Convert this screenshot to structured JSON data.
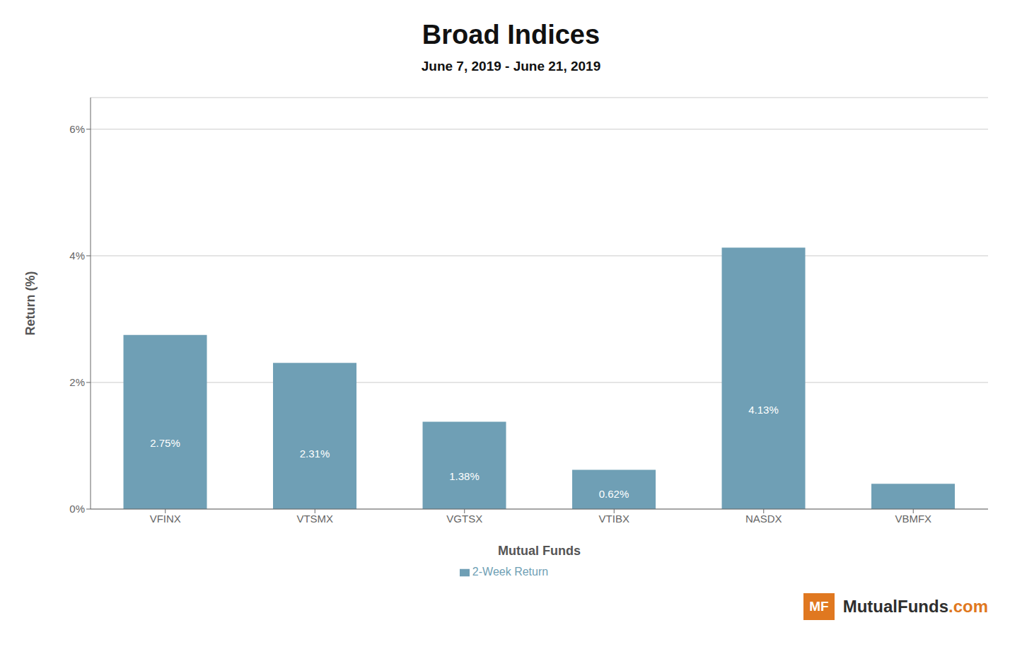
{
  "chart_data": {
    "type": "bar",
    "title": "Broad Indices",
    "subtitle": "June 7, 2019 - June 21, 2019",
    "categories": [
      "VFINX",
      "VTSMX",
      "VGTSX",
      "VTIBX",
      "NASDX",
      "VBMFX"
    ],
    "series": [
      {
        "name": "2-Week Return",
        "color": "#6f9fb5",
        "values": [
          2.75,
          2.31,
          1.38,
          0.62,
          4.13,
          0.4
        ],
        "value_labels": [
          "2.75%",
          "2.31%",
          "1.38%",
          "0.62%",
          "4.13%",
          null
        ]
      }
    ],
    "xlabel": "Mutual Funds",
    "ylabel": "Return (%)",
    "ylim": [
      0,
      6.5
    ],
    "yticks": [
      {
        "value": 0,
        "label": "0%"
      },
      {
        "value": 2,
        "label": "2%"
      },
      {
        "value": 4,
        "label": "4%"
      },
      {
        "value": 6,
        "label": "6%"
      }
    ],
    "grid": true,
    "legend": "bottom",
    "data_labels": true,
    "annotations": [
      {
        "text": "MF",
        "color": "#e07820"
      },
      {
        "text": "MutualFunds",
        "color": "#2e2e2e"
      },
      {
        "text": ".com",
        "color": "#e07820"
      }
    ]
  }
}
